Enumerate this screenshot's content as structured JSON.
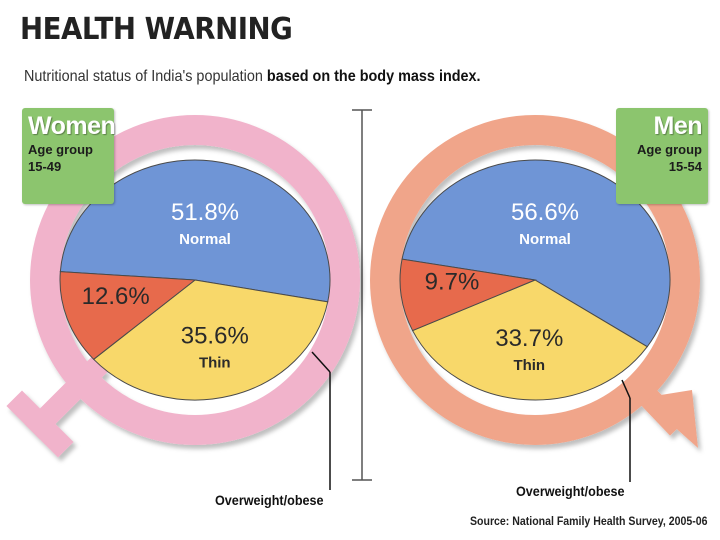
{
  "title": "HEALTH WARNING",
  "subtitle_plain": "Nutritional status of India's population ",
  "subtitle_bold": "based on the body mass index.",
  "source": "Source: National Family Health Survey, 2005-06",
  "colors": {
    "normal": "#6f95d6",
    "thin": "#f8d86a",
    "overweight": "#e76a4c",
    "women_ring": "#f1b3cb",
    "men_ring": "#f0a58a",
    "badge": "#8cc56e"
  },
  "chart_data": [
    {
      "type": "pie",
      "group": "Women",
      "group_label": "Women",
      "age_label_1": "Age group",
      "age_label_2": "15-49",
      "slices": [
        {
          "label": "Normal",
          "value": 51.8,
          "text": "51.8%"
        },
        {
          "label": "Thin",
          "value": 35.6,
          "text": "35.6%"
        },
        {
          "label": "Overweight/obese",
          "value": 12.6,
          "text": "12.6%"
        }
      ],
      "callout_label": "Overweight/obese"
    },
    {
      "type": "pie",
      "group": "Men",
      "group_label": "Men",
      "age_label_1": "Age group",
      "age_label_2": "15-54",
      "slices": [
        {
          "label": "Normal",
          "value": 56.6,
          "text": "56.6%"
        },
        {
          "label": "Thin",
          "value": 33.7,
          "text": "33.7%"
        },
        {
          "label": "Overweight/obese",
          "value": 9.7,
          "text": "9.7%"
        }
      ],
      "callout_label": "Overweight/obese"
    }
  ]
}
